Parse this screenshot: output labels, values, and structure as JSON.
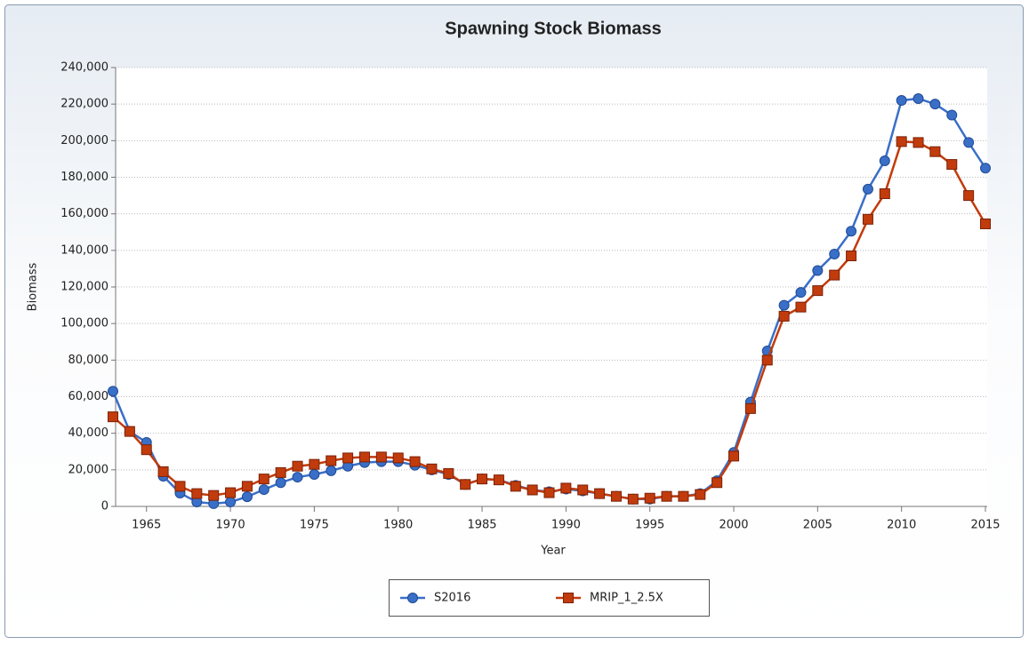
{
  "chart_data": {
    "type": "line",
    "title": "Spawning Stock Biomass",
    "x_label": "Year",
    "y_label": "Biomass",
    "x": [
      1963,
      1964,
      1965,
      1966,
      1967,
      1968,
      1969,
      1970,
      1971,
      1972,
      1973,
      1974,
      1975,
      1976,
      1977,
      1978,
      1979,
      1980,
      1981,
      1982,
      1983,
      1984,
      1985,
      1986,
      1987,
      1988,
      1989,
      1990,
      1991,
      1992,
      1993,
      1994,
      1995,
      1996,
      1997,
      1998,
      1999,
      2000,
      2001,
      2002,
      2003,
      2004,
      2005,
      2006,
      2007,
      2008,
      2009,
      2010,
      2011,
      2012,
      2013,
      2014,
      2015
    ],
    "series": [
      {
        "name": "S2016",
        "color": "#3a6fc8",
        "marker": "circle",
        "values": [
          63000,
          41000,
          35000,
          16500,
          7300,
          2400,
          1500,
          2400,
          5300,
          9200,
          13000,
          16000,
          17500,
          19500,
          22000,
          24000,
          24500,
          24500,
          22500,
          20000,
          17500,
          12000,
          15000,
          14500,
          11500,
          9000,
          8000,
          9500,
          8500,
          7000,
          5500,
          4000,
          4000,
          5500,
          5500,
          7000,
          14000,
          29500,
          57000,
          85000,
          110000,
          117000,
          129000,
          138000,
          150500,
          173500,
          189000,
          222000,
          223000,
          220000,
          214000,
          199000,
          185000
        ]
      },
      {
        "name": "MRIP_1_2.5X",
        "color": "#c23b0c",
        "marker": "square",
        "values": [
          49000,
          41000,
          31000,
          19000,
          11000,
          7000,
          6000,
          7500,
          11000,
          15000,
          18500,
          22000,
          23000,
          25000,
          26500,
          27000,
          27000,
          26500,
          24500,
          20500,
          18000,
          12000,
          15000,
          14500,
          11000,
          9000,
          7500,
          10000,
          9000,
          7000,
          5500,
          4000,
          4500,
          5500,
          5500,
          6500,
          13000,
          27500,
          53500,
          80000,
          104000,
          109000,
          118000,
          126500,
          137000,
          157000,
          171000,
          199500,
          199000,
          194000,
          187000,
          170000,
          154500
        ]
      }
    ],
    "xlim": [
      1963,
      2015
    ],
    "xticks": [
      1965,
      1970,
      1975,
      1980,
      1985,
      1990,
      1995,
      2000,
      2005,
      2010,
      2015
    ],
    "ylim": [
      0,
      240000
    ],
    "yticks": [
      0,
      {
        "value": 20000,
        "label": "20,000"
      },
      {
        "value": 40000,
        "label": "40,000"
      },
      {
        "value": 60000,
        "label": "60,000"
      },
      {
        "value": 80000,
        "label": "80,000"
      },
      {
        "value": 100000,
        "label": "100,000"
      },
      {
        "value": 120000,
        "label": "120,000"
      },
      {
        "value": 140000,
        "label": "140,000"
      },
      {
        "value": 160000,
        "label": "160,000"
      },
      {
        "value": 180000,
        "label": "180,000"
      },
      {
        "value": 200000,
        "label": "200,000"
      },
      {
        "value": 220000,
        "label": "220,000"
      },
      {
        "value": 240000,
        "label": "240,000"
      }
    ],
    "grid": true,
    "legend": "bottom"
  }
}
